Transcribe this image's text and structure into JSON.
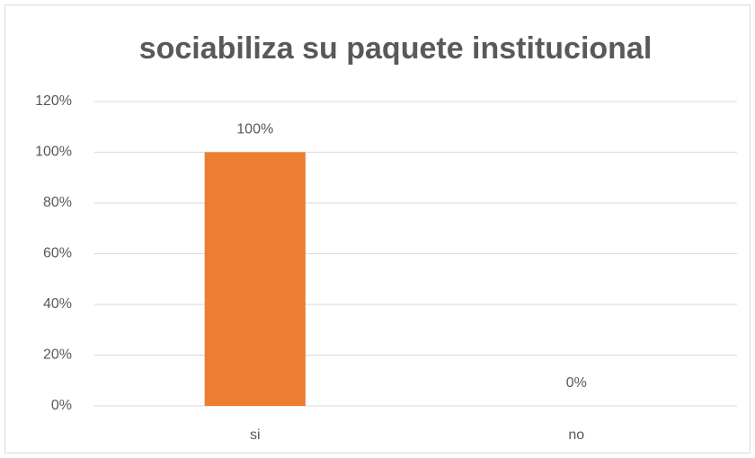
{
  "chart_data": {
    "type": "bar",
    "title": "sociabiliza su paquete institucional",
    "categories": [
      "si",
      "no"
    ],
    "values": [
      100,
      0
    ],
    "value_labels": [
      "100%",
      "0%"
    ],
    "color": "#ed7d31",
    "ylim": [
      0,
      120
    ],
    "yticks": [
      {
        "value": 0,
        "label": "0%"
      },
      {
        "value": 20,
        "label": "20%"
      },
      {
        "value": 40,
        "label": "40%"
      },
      {
        "value": 60,
        "label": "60%"
      },
      {
        "value": 80,
        "label": "80%"
      },
      {
        "value": 100,
        "label": "100%"
      },
      {
        "value": 120,
        "label": "120%"
      }
    ],
    "grid": true
  }
}
